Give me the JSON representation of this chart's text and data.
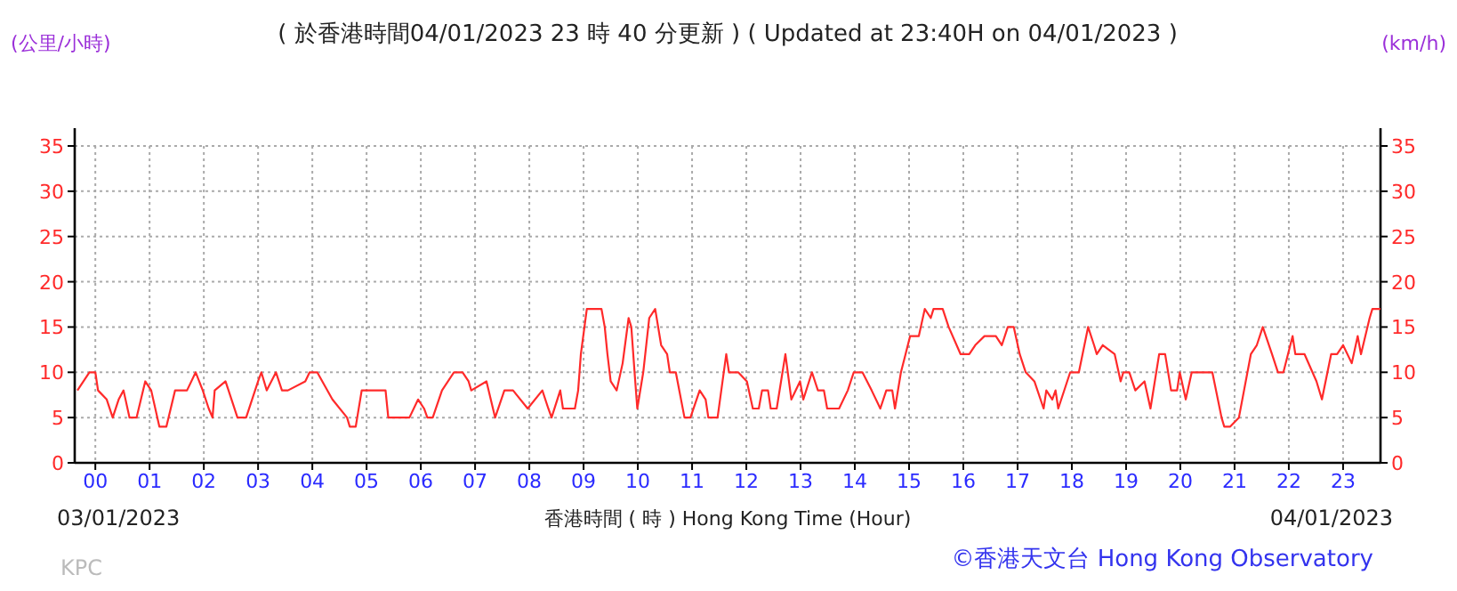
{
  "chart_data": {
    "type": "line",
    "title": "( 於香港時間04/01/2023 23 時 40 分更新 ) ( Updated at 23:40H on 04/01/2023 )",
    "xlabel": "香港時間 ( 時 ) Hong Kong Time (Hour)",
    "ylabel": "(公里/小時)",
    "y2label": "(km/h)",
    "annotations": [
      "03/01/2023",
      "04/01/2023",
      "KPC",
      "©香港天文台 Hong Kong Observatory"
    ],
    "xlim": [
      -0.38,
      23.69
    ],
    "ylim": [
      0,
      35
    ],
    "y2lim": [
      0,
      35
    ],
    "xticks": [
      {
        "value": 0,
        "label": "00"
      },
      {
        "value": 1,
        "label": "01"
      },
      {
        "value": 2,
        "label": "02"
      },
      {
        "value": 3,
        "label": "03"
      },
      {
        "value": 4,
        "label": "04"
      },
      {
        "value": 5,
        "label": "05"
      },
      {
        "value": 6,
        "label": "06"
      },
      {
        "value": 7,
        "label": "07"
      },
      {
        "value": 8,
        "label": "08"
      },
      {
        "value": 9,
        "label": "09"
      },
      10,
      11,
      12,
      13,
      14,
      15,
      16,
      17,
      18,
      19,
      20,
      21,
      22,
      23
    ],
    "yticks": [
      0,
      5,
      10,
      15,
      20,
      25,
      30,
      35
    ],
    "y2ticks": [
      0,
      5,
      10,
      15,
      20,
      25,
      30,
      35
    ],
    "grid": true,
    "marker": "none",
    "line_style": "solid",
    "series": [
      {
        "color": "#ff2a2a",
        "x": [
          -0.33,
          -0.11,
          0,
          0.05,
          0.21,
          0.32,
          0.43,
          0.52,
          0.63,
          0.76,
          0.92,
          1.03,
          1.18,
          1.31,
          1.47,
          1.69,
          1.85,
          1.98,
          2.09,
          2.16,
          2.2,
          2.4,
          2.62,
          2.78,
          3.0,
          3.06,
          3.16,
          3.33,
          3.44,
          3.55,
          3.87,
          3.95,
          4.09,
          4.37,
          4.64,
          4.69,
          4.8,
          4.91,
          5.35,
          5.4,
          5.79,
          5.95,
          6.06,
          6.12,
          6.22,
          6.39,
          6.61,
          6.77,
          6.88,
          6.93,
          7.21,
          7.37,
          7.54,
          7.7,
          7.97,
          8.24,
          8.35,
          8.41,
          8.57,
          8.62,
          8.84,
          8.9,
          8.95,
          9.06,
          9.33,
          9.39,
          9.44,
          9.5,
          9.61,
          9.72,
          9.83,
          9.88,
          9.94,
          9.99,
          10.1,
          10.21,
          10.32,
          10.43,
          10.54,
          10.59,
          10.7,
          10.86,
          10.97,
          11.14,
          11.25,
          11.3,
          11.47,
          11.63,
          11.68,
          11.85,
          12.01,
          12.12,
          12.23,
          12.29,
          12.4,
          12.45,
          12.56,
          12.72,
          12.83,
          12.99,
          13.05,
          13.21,
          13.32,
          13.43,
          13.49,
          13.71,
          13.87,
          13.98,
          14.14,
          14.31,
          14.47,
          14.58,
          14.69,
          14.74,
          14.85,
          15.02,
          15.18,
          15.29,
          15.4,
          15.45,
          15.62,
          15.73,
          15.95,
          16.11,
          16.22,
          16.39,
          16.6,
          16.71,
          16.82,
          16.93,
          17.04,
          17.15,
          17.31,
          17.48,
          17.53,
          17.64,
          17.7,
          17.75,
          17.97,
          18.13,
          18.3,
          18.41,
          18.46,
          18.57,
          18.79,
          18.9,
          18.95,
          19.06,
          19.17,
          19.34,
          19.45,
          19.61,
          19.72,
          19.83,
          19.94,
          19.99,
          20.1,
          20.21,
          20.59,
          20.76,
          20.81,
          20.92,
          21.08,
          21.3,
          21.41,
          21.52,
          21.69,
          21.8,
          21.9,
          22.07,
          22.12,
          22.29,
          22.51,
          22.61,
          22.78,
          22.89,
          23.0,
          23.16,
          23.27,
          23.33,
          23.49,
          23.54,
          23.69
        ],
        "values": [
          8,
          10,
          10,
          8,
          7,
          5,
          7,
          8,
          5,
          5,
          9,
          8,
          4,
          4,
          8,
          8,
          10,
          8,
          6,
          5,
          8,
          9,
          5,
          5,
          9,
          10,
          8,
          10,
          8,
          8,
          9,
          10,
          10,
          7,
          5,
          4,
          4,
          8,
          8,
          5,
          5,
          7,
          6,
          5,
          5,
          8,
          10,
          10,
          9,
          8,
          9,
          5,
          8,
          8,
          6,
          8,
          6,
          5,
          8,
          6,
          6,
          8,
          12,
          17,
          17,
          15,
          12,
          9,
          8,
          11,
          16,
          15,
          10,
          6,
          10,
          16,
          17,
          13,
          12,
          10,
          10,
          5,
          5,
          8,
          7,
          5,
          5,
          12,
          10,
          10,
          9,
          6,
          6,
          8,
          8,
          6,
          6,
          12,
          7,
          9,
          7,
          10,
          8,
          8,
          6,
          6,
          8,
          10,
          10,
          8,
          6,
          8,
          8,
          6,
          10,
          14,
          14,
          17,
          16,
          17,
          17,
          15,
          12,
          12,
          13,
          14,
          14,
          13,
          15,
          15,
          12,
          10,
          9,
          6,
          8,
          7,
          8,
          6,
          10,
          10,
          15,
          13,
          12,
          13,
          12,
          9,
          10,
          10,
          8,
          9,
          6,
          12,
          12,
          8,
          8,
          10,
          7,
          10,
          10,
          5,
          4,
          4,
          5,
          12,
          13,
          15,
          12,
          10,
          10,
          14,
          12,
          12,
          9,
          7,
          12,
          12,
          13,
          11,
          14,
          12,
          16,
          17,
          17
        ]
      }
    ]
  }
}
